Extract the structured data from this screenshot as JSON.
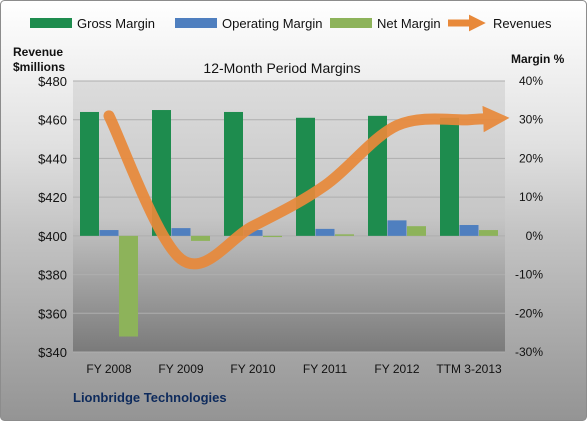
{
  "chart_data": {
    "type": "bar",
    "title": "12-Month Period Margins",
    "categories": [
      "FY 2008",
      "FY 2009",
      "FY 2010",
      "FY 2011",
      "FY 2012",
      "TTM 3-2013"
    ],
    "left_axis": {
      "label_line1": "Revenue",
      "label_line2": "$millions",
      "ylim": [
        340,
        480
      ],
      "ticks": [
        "$340",
        "$360",
        "$380",
        "$400",
        "$420",
        "$440",
        "$460",
        "$480"
      ]
    },
    "right_axis": {
      "label": "Margin %",
      "ylim": [
        -30,
        40
      ],
      "ticks": [
        "-30%",
        "-20%",
        "-10%",
        "0%",
        "10%",
        "20%",
        "30%",
        "40%"
      ]
    },
    "series": [
      {
        "name": "Gross Margin",
        "kind": "bar",
        "axis": "right",
        "color": "#1e8c4e",
        "values": [
          32,
          32.5,
          32,
          30.5,
          31,
          30.5
        ]
      },
      {
        "name": "Operating Margin",
        "kind": "bar",
        "axis": "right",
        "color": "#4f7fbf",
        "values": [
          1.5,
          2,
          1.5,
          1.8,
          4,
          2.8
        ]
      },
      {
        "name": "Net Margin",
        "kind": "bar",
        "axis": "right",
        "color": "#8db35a",
        "values": [
          -26,
          -1.3,
          0,
          0.4,
          2.5,
          1.5
        ]
      },
      {
        "name": "Revenues",
        "kind": "line",
        "axis": "left",
        "color": "#e8893a",
        "values": [
          462,
          388,
          405,
          426,
          457,
          460
        ]
      }
    ],
    "legend_position": "top",
    "footer": "Lionbridge Technologies",
    "grid": true
  }
}
